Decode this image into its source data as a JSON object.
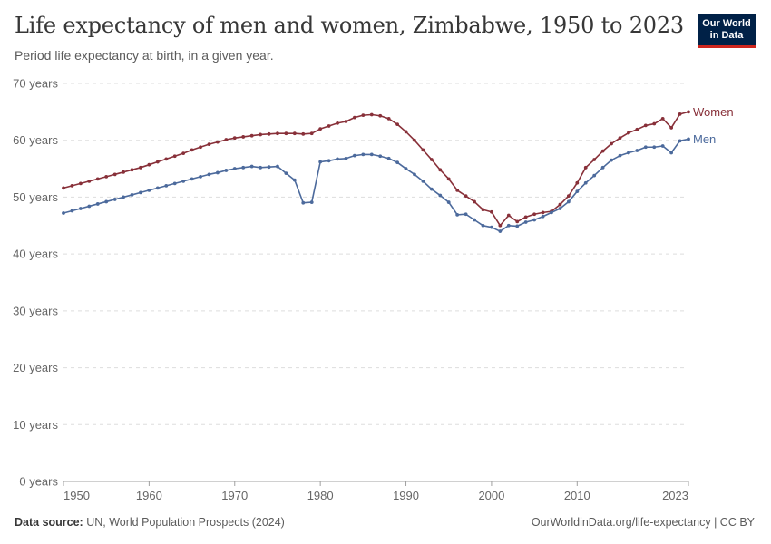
{
  "header": {
    "title": "Life expectancy of men and women, Zimbabwe, 1950 to 2023",
    "subtitle": "Period life expectancy at birth, in a given year.",
    "logo_line1": "Our World",
    "logo_line2": "in Data"
  },
  "footer": {
    "source_label": "Data source:",
    "source_text": "UN, World Population Prospects (2024)",
    "url_text": "OurWorldinData.org/life-expectancy | CC BY"
  },
  "chart_data": {
    "type": "line",
    "title": "Life expectancy of men and women, Zimbabwe, 1950 to 2023",
    "subtitle": "Period life expectancy at birth, in a given year.",
    "xlabel": "",
    "ylabel": "",
    "xlim": [
      1950,
      2023
    ],
    "ylim": [
      0,
      70
    ],
    "y_ticks": [
      0,
      10,
      20,
      30,
      40,
      50,
      60,
      70
    ],
    "y_tick_labels": [
      "0 years",
      "10 years",
      "20 years",
      "30 years",
      "40 years",
      "50 years",
      "60 years",
      "70 years"
    ],
    "x_ticks": [
      1950,
      1960,
      1970,
      1980,
      1990,
      2000,
      2010,
      2023
    ],
    "x_tick_labels": [
      "1950",
      "1960",
      "1970",
      "1980",
      "1990",
      "2000",
      "2010",
      "2023"
    ],
    "grid": true,
    "legend": "end-of-line labels",
    "series": [
      {
        "name": "Women",
        "color": "#883039",
        "x": [
          1950,
          1951,
          1952,
          1953,
          1954,
          1955,
          1956,
          1957,
          1958,
          1959,
          1960,
          1961,
          1962,
          1963,
          1964,
          1965,
          1966,
          1967,
          1968,
          1969,
          1970,
          1971,
          1972,
          1973,
          1974,
          1975,
          1976,
          1977,
          1978,
          1979,
          1980,
          1981,
          1982,
          1983,
          1984,
          1985,
          1986,
          1987,
          1988,
          1989,
          1990,
          1991,
          1992,
          1993,
          1994,
          1995,
          1996,
          1997,
          1998,
          1999,
          2000,
          2001,
          2002,
          2003,
          2004,
          2005,
          2006,
          2007,
          2008,
          2009,
          2010,
          2011,
          2012,
          2013,
          2014,
          2015,
          2016,
          2017,
          2018,
          2019,
          2020,
          2021,
          2022,
          2023
        ],
        "values": [
          51.6,
          52.0,
          52.4,
          52.8,
          53.2,
          53.6,
          54.0,
          54.4,
          54.8,
          55.2,
          55.7,
          56.2,
          56.7,
          57.2,
          57.7,
          58.3,
          58.8,
          59.3,
          59.7,
          60.1,
          60.4,
          60.6,
          60.8,
          61.0,
          61.1,
          61.2,
          61.2,
          61.2,
          61.1,
          61.2,
          62.0,
          62.5,
          63.0,
          63.3,
          64.0,
          64.4,
          64.5,
          64.3,
          63.8,
          62.8,
          61.5,
          60.0,
          58.3,
          56.6,
          54.8,
          53.2,
          51.2,
          50.2,
          49.2,
          47.8,
          47.4,
          45.0,
          46.8,
          45.7,
          46.5,
          47.0,
          47.3,
          47.5,
          48.7,
          50.2,
          52.5,
          55.2,
          56.6,
          58.1,
          59.4,
          60.4,
          61.3,
          61.9,
          62.6,
          62.9,
          63.8,
          62.2,
          64.6,
          65.0
        ]
      },
      {
        "name": "Men",
        "color": "#4c6a9c",
        "x": [
          1950,
          1951,
          1952,
          1953,
          1954,
          1955,
          1956,
          1957,
          1958,
          1959,
          1960,
          1961,
          1962,
          1963,
          1964,
          1965,
          1966,
          1967,
          1968,
          1969,
          1970,
          1971,
          1972,
          1973,
          1974,
          1975,
          1976,
          1977,
          1978,
          1979,
          1980,
          1981,
          1982,
          1983,
          1984,
          1985,
          1986,
          1987,
          1988,
          1989,
          1990,
          1991,
          1992,
          1993,
          1994,
          1995,
          1996,
          1997,
          1998,
          1999,
          2000,
          2001,
          2002,
          2003,
          2004,
          2005,
          2006,
          2007,
          2008,
          2009,
          2010,
          2011,
          2012,
          2013,
          2014,
          2015,
          2016,
          2017,
          2018,
          2019,
          2020,
          2021,
          2022,
          2023
        ],
        "values": [
          47.2,
          47.6,
          48.0,
          48.4,
          48.8,
          49.2,
          49.6,
          50.0,
          50.4,
          50.8,
          51.2,
          51.6,
          52.0,
          52.4,
          52.8,
          53.2,
          53.6,
          54.0,
          54.3,
          54.7,
          55.0,
          55.2,
          55.4,
          55.2,
          55.3,
          55.4,
          54.2,
          53.0,
          49.0,
          49.1,
          56.2,
          56.4,
          56.7,
          56.8,
          57.3,
          57.5,
          57.5,
          57.2,
          56.8,
          56.1,
          55.0,
          54.0,
          52.8,
          51.4,
          50.3,
          49.1,
          46.9,
          47.0,
          46.0,
          45.0,
          44.7,
          44.0,
          45.0,
          44.9,
          45.6,
          46.0,
          46.6,
          47.3,
          48.0,
          49.2,
          51.0,
          52.5,
          53.8,
          55.2,
          56.5,
          57.3,
          57.8,
          58.2,
          58.8,
          58.8,
          59.0,
          57.8,
          59.9,
          60.2
        ]
      }
    ]
  }
}
